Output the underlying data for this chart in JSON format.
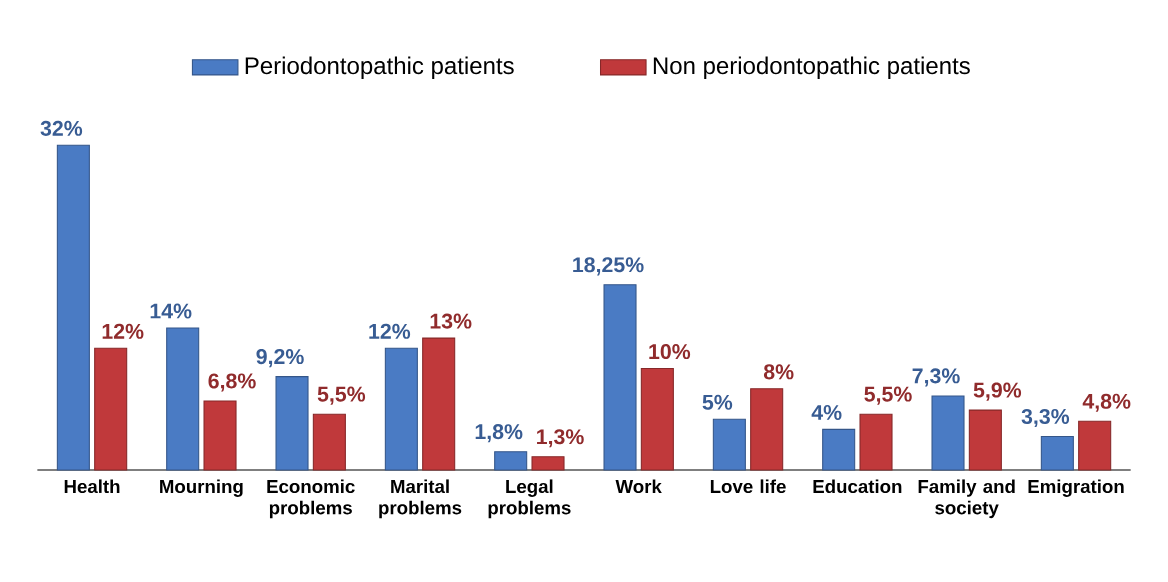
{
  "chart_data": {
    "type": "bar",
    "categories": [
      "Health",
      "Mourning",
      "Economic problems",
      "Marital problems",
      "Legal problems",
      "Work",
      "Love life",
      "Education",
      "Family and society",
      "Emigration"
    ],
    "series": [
      {
        "name": "Periodontopathic patients",
        "color": "#4a7bc4",
        "values": [
          32,
          14,
          9.2,
          12,
          1.8,
          18.25,
          5,
          4,
          7.3,
          3.3
        ],
        "value_labels": [
          "32%",
          "14%",
          "9,2%",
          "12%",
          "1,8%",
          "18,25%",
          "5%",
          "4%",
          "7,3%",
          "3,3%"
        ]
      },
      {
        "name": "Non periodontopathic patients",
        "color": "#c0393b",
        "values": [
          12,
          6.8,
          5.5,
          13,
          1.3,
          10,
          8,
          5.5,
          5.9,
          4.8
        ],
        "value_labels": [
          "12%",
          "6,8%",
          "5,5%",
          "13%",
          "1,3%",
          "10%",
          "8%",
          "5,5%",
          "5,9%",
          "4,8%"
        ]
      }
    ],
    "legend": "top"
  }
}
